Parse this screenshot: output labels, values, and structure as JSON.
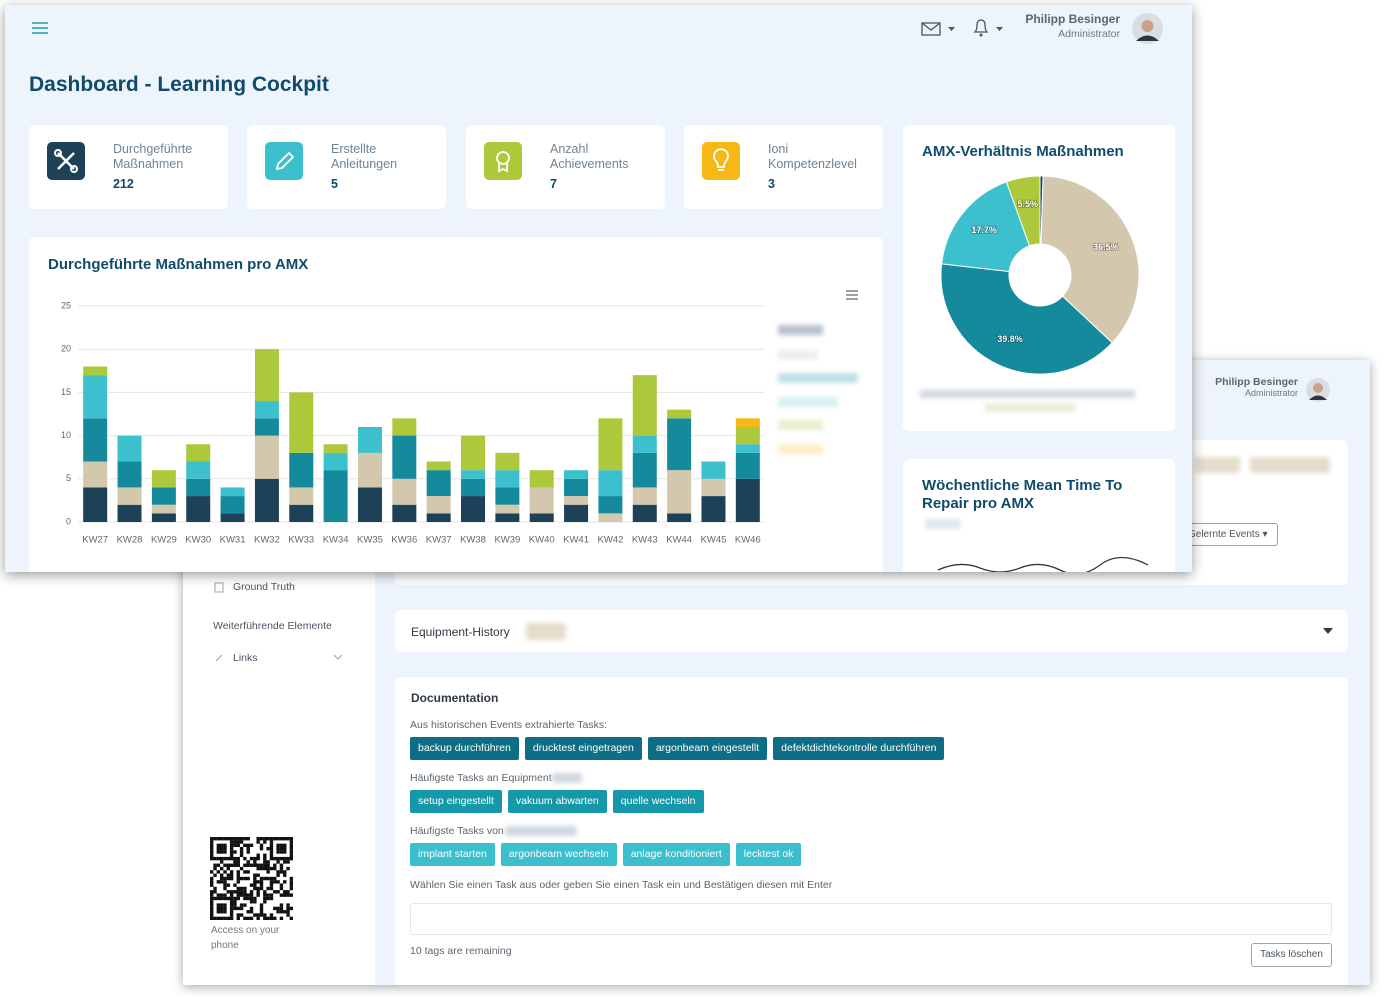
{
  "header": {
    "user": "Philipp Besinger",
    "role": "Administrator"
  },
  "title": "Dashboard - Learning Cockpit",
  "stats": [
    {
      "label": "Durchgeführte Maßnahmen",
      "value": "212"
    },
    {
      "label": "Erstellte Anleitungen",
      "value": "5"
    },
    {
      "label": "Anzahl Achievements",
      "value": "7"
    },
    {
      "label": "Ioni Kompetenzlevel",
      "value": "3"
    }
  ],
  "chart_data": [
    {
      "type": "bar",
      "stacked": true,
      "title": "Durchgeführte Maßnahmen pro AMX",
      "categories": [
        "KW27",
        "KW28",
        "KW29",
        "KW30",
        "KW31",
        "KW32",
        "KW33",
        "KW34",
        "KW35",
        "KW36",
        "KW37",
        "KW38",
        "KW39",
        "KW40",
        "KW41",
        "KW42",
        "KW43",
        "KW44",
        "KW45",
        "KW46"
      ],
      "series": [
        {
          "color": "#1d4157",
          "values": [
            4,
            2,
            1,
            3,
            1,
            5,
            2,
            0,
            4,
            2,
            1,
            3,
            1,
            1,
            2,
            0,
            2,
            1,
            3,
            5
          ]
        },
        {
          "color": "#d3c7ad",
          "values": [
            3,
            2,
            1,
            0,
            0,
            5,
            2,
            0,
            4,
            3,
            2,
            0,
            1,
            3,
            1,
            1,
            2,
            5,
            2,
            0
          ]
        },
        {
          "color": "#148a9c",
          "values": [
            5,
            3,
            2,
            2,
            2,
            2,
            4,
            6,
            0,
            5,
            3,
            2,
            2,
            0,
            2,
            2,
            4,
            6,
            0,
            3
          ]
        },
        {
          "color": "#3dc0cd",
          "values": [
            5,
            3,
            0,
            2,
            1,
            2,
            0,
            2,
            3,
            0,
            0,
            1,
            2,
            0,
            1,
            3,
            2,
            0,
            2,
            1
          ]
        },
        {
          "color": "#abc93a",
          "values": [
            1,
            0,
            2,
            2,
            0,
            6,
            7,
            1,
            0,
            2,
            1,
            4,
            2,
            2,
            0,
            6,
            7,
            1,
            0,
            2
          ]
        },
        {
          "color": "#f6b817",
          "values": [
            0,
            0,
            0,
            0,
            0,
            0,
            0,
            0,
            0,
            0,
            0,
            0,
            0,
            0,
            0,
            0,
            0,
            0,
            0,
            1
          ]
        }
      ],
      "ylim": [
        0,
        25
      ],
      "yticks": [
        0,
        5,
        10,
        15,
        20,
        25
      ],
      "grid": true
    },
    {
      "type": "pie",
      "donut": true,
      "title": "AMX-Verhältnis Maßnahmen",
      "values": [
        0.5,
        36.5,
        39.8,
        17.7,
        5.5
      ],
      "value_labels": [
        null,
        "36.5%",
        "39.8%",
        "17.7%",
        "5.5%"
      ],
      "colors": [
        "#1d4157",
        "#d3c7ad",
        "#148a9c",
        "#3dc0cd",
        "#abc93a"
      ]
    }
  ],
  "mttr_title": "Wöchentliche Mean Time To Repair pro AMX",
  "back": {
    "user": "Philipp Besinger",
    "role": "Administrator",
    "sidebar": {
      "ground_truth": "Ground Truth",
      "section": "Weiterführende Elemente",
      "links": "Links",
      "access": "Access on your phone"
    },
    "events_button": "Gelernte Events",
    "equipment_history": "Equipment-History",
    "documentation": {
      "title": "Documentation",
      "extracted_label": "Aus historischen Events extrahierte Tasks:",
      "extracted": [
        "backup durchführen",
        "drucktest eingetragen",
        "argonbeam eingestellt",
        "defektdichtekontrolle durchführen"
      ],
      "equipment_label": "Häufigste Tasks an Equipment",
      "equipment": [
        "setup eingestellt",
        "vakuum abwarten",
        "quelle wechseln"
      ],
      "user_label": "Häufigste Tasks von",
      "user": [
        "implant starten",
        "argonbeam wechseln",
        "anlage konditioniert",
        "lecktest ok"
      ],
      "prompt": "Wählen Sie einen Task aus oder geben Sie einen Task ein und Bestätigen diesen mit Enter",
      "remaining": "10 tags are remaining",
      "clear": "Tasks löschen"
    }
  }
}
